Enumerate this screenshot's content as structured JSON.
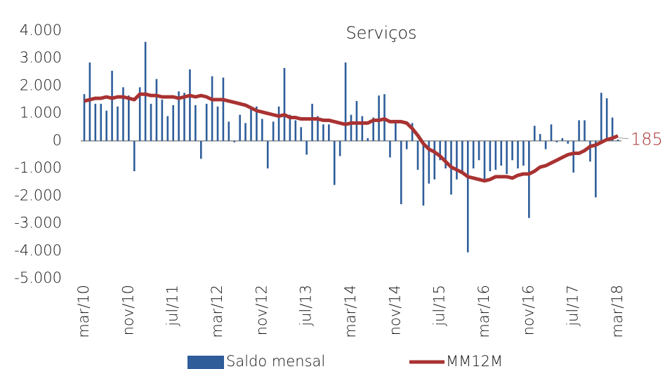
{
  "chart_data": {
    "type": "bar-line",
    "title": "Serviços",
    "categories": [
      "mar/10",
      null,
      null,
      null,
      null,
      null,
      null,
      null,
      "nov/10",
      null,
      null,
      null,
      null,
      null,
      null,
      null,
      "jul/11",
      null,
      null,
      null,
      null,
      null,
      null,
      null,
      "mar/12",
      null,
      null,
      null,
      null,
      null,
      null,
      null,
      "nov/12",
      null,
      null,
      null,
      null,
      null,
      null,
      null,
      "jul/13",
      null,
      null,
      null,
      null,
      null,
      null,
      null,
      "mar/14",
      null,
      null,
      null,
      null,
      null,
      null,
      null,
      "nov/14",
      null,
      null,
      null,
      null,
      null,
      null,
      null,
      "jul/15",
      null,
      null,
      null,
      null,
      null,
      null,
      null,
      "mar/16",
      null,
      null,
      null,
      null,
      null,
      null,
      null,
      "nov/16",
      null,
      null,
      null,
      null,
      null,
      null,
      null,
      "jul/17",
      null,
      null,
      null,
      null,
      null,
      null,
      null,
      "mar/18"
    ],
    "series": [
      {
        "name": "Saldo mensal",
        "type": "bar",
        "color": "#2e5d9a",
        "values": [
          1700,
          2850,
          1350,
          1350,
          1100,
          2550,
          1250,
          1950,
          1650,
          -1100,
          1950,
          3600,
          1350,
          2250,
          1500,
          900,
          1300,
          1800,
          1750,
          2600,
          1300,
          -650,
          1350,
          2350,
          1250,
          2300,
          700,
          -50,
          950,
          650,
          1150,
          1250,
          800,
          -1000,
          700,
          1250,
          2650,
          950,
          750,
          500,
          -500,
          1350,
          900,
          600,
          600,
          -1600,
          -550,
          2850,
          950,
          1450,
          900,
          100,
          850,
          1650,
          1700,
          -600,
          700,
          -2300,
          -300,
          650,
          -1050,
          -2350,
          -1550,
          -1400,
          -700,
          -1000,
          -1950,
          -1400,
          -1100,
          -4050,
          -1000,
          -700,
          -1400,
          -1100,
          -1050,
          -900,
          -1200,
          -700,
          -1000,
          -900,
          -2800,
          550,
          250,
          -300,
          600,
          -50,
          100,
          -100,
          -1150,
          750,
          750,
          -750,
          -2050,
          1750,
          1550,
          850,
          50
        ]
      },
      {
        "name": "MM12M",
        "type": "line",
        "color": "#a93232",
        "values": [
          1450,
          1500,
          1550,
          1550,
          1600,
          1550,
          1600,
          1600,
          1550,
          1500,
          1700,
          1700,
          1650,
          1650,
          1600,
          1600,
          1600,
          1550,
          1600,
          1650,
          1600,
          1650,
          1600,
          1500,
          1500,
          1500,
          1450,
          1400,
          1350,
          1300,
          1200,
          1100,
          1050,
          1000,
          950,
          900,
          950,
          850,
          850,
          800,
          800,
          800,
          800,
          750,
          750,
          700,
          650,
          600,
          650,
          650,
          650,
          650,
          750,
          750,
          800,
          700,
          700,
          700,
          650,
          450,
          200,
          -100,
          -300,
          -400,
          -550,
          -750,
          -950,
          -1050,
          -1150,
          -1300,
          -1350,
          -1400,
          -1450,
          -1400,
          -1300,
          -1300,
          -1300,
          -1350,
          -1250,
          -1200,
          -1200,
          -1100,
          -950,
          -900,
          -800,
          -700,
          -600,
          -500,
          -450,
          -450,
          -350,
          -200,
          -150,
          -50,
          50,
          100,
          185
        ]
      }
    ],
    "ylim": [
      -5000,
      4000
    ],
    "yticks": [
      {
        "value": -5000,
        "label": "-5.000"
      },
      {
        "value": -4000,
        "label": "-4.000"
      },
      {
        "value": -3000,
        "label": "-3.000"
      },
      {
        "value": -2000,
        "label": "-2.000"
      },
      {
        "value": -1000,
        "label": "-1.000"
      },
      0,
      {
        "value": 1000,
        "label": "1.000"
      },
      {
        "value": 2000,
        "label": "2.000"
      },
      {
        "value": 3000,
        "label": "3.000"
      },
      {
        "value": 4000,
        "label": "4.000"
      }
    ],
    "grid": false
  }
}
